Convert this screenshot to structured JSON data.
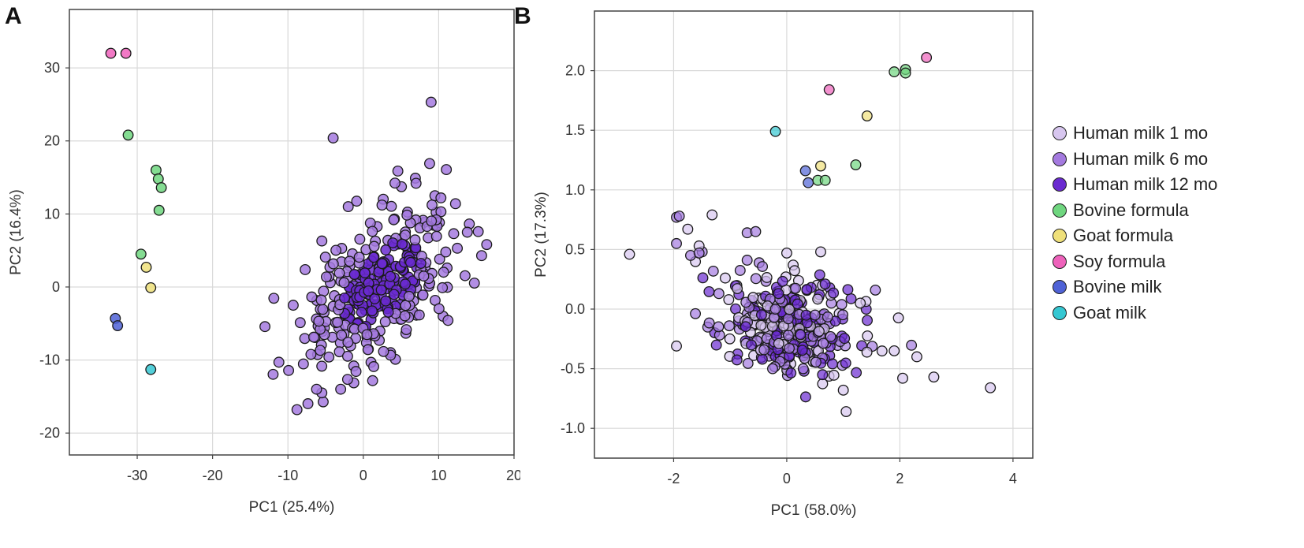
{
  "panels": {
    "a_label": "A",
    "b_label": "B"
  },
  "colors": {
    "Human milk 1 mo": "#d7c6ef",
    "Human milk 6 mo": "#a47adf",
    "Human milk 12 mo": "#6a2ad0",
    "Bovine formula": "#6fd67f",
    "Goat formula": "#efe07a",
    "Soy formula": "#ee62bb",
    "Bovine milk": "#4f62d6",
    "Goat milk": "#35c7d2"
  },
  "legend": {
    "placement": "right",
    "entries": [
      "Human milk 1 mo",
      "Human milk 6 mo",
      "Human milk 12 mo",
      "Bovine formula",
      "Goat formula",
      "Soy formula",
      "Bovine milk",
      "Goat milk"
    ]
  },
  "chart_data": [
    {
      "id": "A",
      "type": "scatter",
      "xlabel": "PC1 (25.4%)",
      "ylabel": "PC2 (16.4%)",
      "xlim": [
        -39,
        20
      ],
      "ylim": [
        -23,
        38
      ],
      "xticks": [
        -30,
        -20,
        -10,
        0,
        10,
        20
      ],
      "yticks": [
        -20,
        -10,
        0,
        10,
        20,
        30
      ],
      "grid": true,
      "human_cluster": {
        "groups": [
          "Human milk 12 mo",
          "Human milk 6 mo"
        ],
        "center": [
          2.5,
          0.5
        ],
        "spread": [
          5.0,
          5.8
        ],
        "correlation": 0.55,
        "count": 330
      },
      "series": [
        {
          "name": "Soy formula",
          "points": [
            [
              -33.5,
              32
            ],
            [
              -31.5,
              32
            ]
          ]
        },
        {
          "name": "Bovine formula",
          "points": [
            [
              -31.2,
              20.8
            ],
            [
              -27.5,
              16
            ],
            [
              -27.2,
              14.8
            ],
            [
              -26.8,
              13.6
            ],
            [
              -27.1,
              10.5
            ],
            [
              -29.5,
              4.5
            ]
          ]
        },
        {
          "name": "Goat formula",
          "points": [
            [
              -28.8,
              2.7
            ],
            [
              -28.2,
              -0.1
            ]
          ]
        },
        {
          "name": "Bovine milk",
          "points": [
            [
              -32.9,
              -4.3
            ],
            [
              -32.6,
              -5.3
            ]
          ]
        },
        {
          "name": "Goat milk",
          "points": [
            [
              -28.2,
              -11.3
            ]
          ]
        },
        {
          "name": "Human milk 6 mo",
          "points": [
            [
              -4,
              20.4
            ],
            [
              9,
              25.3
            ],
            [
              8.8,
              16.9
            ],
            [
              13.8,
              7.5
            ],
            [
              -11.2,
              -10.3
            ],
            [
              -8.8,
              -16.8
            ],
            [
              -5.5,
              -14.5
            ],
            [
              -6.2,
              -14
            ],
            [
              -3,
              -14
            ],
            [
              7,
              14.2
            ],
            [
              9.5,
              12.5
            ],
            [
              10.3,
              12.2
            ],
            [
              12,
              7.3
            ],
            [
              -9.3,
              -2.5
            ],
            [
              -5.5,
              6.3
            ],
            [
              -2,
              11
            ]
          ]
        }
      ]
    },
    {
      "id": "B",
      "type": "scatter",
      "xlabel": "PC1 (58.0%)",
      "ylabel": "PC2 (17.3%)",
      "xlim": [
        -3.4,
        4.35
      ],
      "ylim": [
        -1.25,
        2.5
      ],
      "xticks": [
        -2,
        0,
        2,
        4
      ],
      "yticks": [
        -1.0,
        -0.5,
        0.0,
        0.5,
        1.0,
        1.5,
        2.0
      ],
      "grid": true,
      "human_cluster": {
        "groups": [
          "Human milk 1 mo",
          "Human milk 6 mo",
          "Human milk 12 mo"
        ],
        "center": [
          0.05,
          -0.12
        ],
        "spread": [
          0.65,
          0.22
        ],
        "correlation": -0.35,
        "count": 330
      },
      "series": [
        {
          "name": "Soy formula",
          "points": [
            [
              2.47,
              2.11
            ],
            [
              0.75,
              1.84
            ]
          ]
        },
        {
          "name": "Bovine formula",
          "points": [
            [
              1.9,
              1.99
            ],
            [
              2.1,
              2.01
            ],
            [
              2.1,
              1.98
            ],
            [
              1.22,
              1.21
            ],
            [
              0.55,
              1.08
            ],
            [
              0.68,
              1.08
            ]
          ]
        },
        {
          "name": "Goat formula",
          "points": [
            [
              1.42,
              1.62
            ],
            [
              0.6,
              1.2
            ]
          ]
        },
        {
          "name": "Goat milk",
          "points": [
            [
              -0.2,
              1.49
            ]
          ]
        },
        {
          "name": "Bovine milk",
          "points": [
            [
              0.33,
              1.16
            ],
            [
              0.38,
              1.06
            ]
          ]
        },
        {
          "name": "Human milk 1 mo",
          "points": [
            [
              -2.78,
              0.46
            ],
            [
              3.6,
              -0.66
            ],
            [
              1.05,
              -0.86
            ],
            [
              2.6,
              -0.57
            ],
            [
              2.05,
              -0.58
            ],
            [
              -1.95,
              -0.31
            ],
            [
              -1.32,
              0.79
            ],
            [
              -1.55,
              0.53
            ],
            [
              -1.75,
              0.67
            ],
            [
              1.9,
              -0.35
            ],
            [
              2.3,
              -0.4
            ],
            [
              1.3,
              0.05
            ],
            [
              0.6,
              0.48
            ],
            [
              0.0,
              0.47
            ],
            [
              1.0,
              -0.68
            ]
          ]
        },
        {
          "name": "Human milk 6 mo",
          "points": [
            [
              -1.95,
              0.77
            ],
            [
              -1.9,
              0.78
            ],
            [
              -1.95,
              0.55
            ],
            [
              -1.7,
              0.45
            ],
            [
              -1.55,
              0.47
            ],
            [
              -0.7,
              0.64
            ],
            [
              -0.55,
              0.65
            ],
            [
              -0.7,
              0.41
            ],
            [
              -1.2,
              0.13
            ],
            [
              -0.25,
              -0.5
            ],
            [
              -0.2,
              0.0
            ],
            [
              0.5,
              -0.05
            ]
          ]
        }
      ]
    }
  ]
}
